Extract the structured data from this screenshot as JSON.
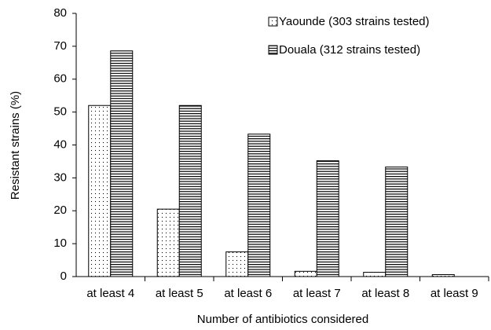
{
  "chart_data": {
    "type": "bar",
    "x_label": "Number of antibiotics considered",
    "y_label": "Resistant strains (%)",
    "categories": [
      "at least 4",
      "at least 5",
      "at least 6",
      "at least 7",
      "at least 8",
      "at least 9"
    ],
    "series": [
      {
        "name": "Yaounde (303 strains tested)",
        "color": "#000000",
        "pattern": "dots",
        "values": [
          52,
          20.5,
          7.5,
          1.6,
          1.3,
          0.6
        ]
      },
      {
        "name": "Douala (312 strains tested)",
        "color": "#000000",
        "pattern": "hlines",
        "values": [
          68.6,
          52,
          43.3,
          35.2,
          33.3,
          0
        ]
      }
    ],
    "ylim": [
      0,
      80
    ],
    "yticks": [
      0,
      10,
      20,
      30,
      40,
      50,
      60,
      70,
      80
    ],
    "grid": false,
    "legend": "top-right"
  }
}
